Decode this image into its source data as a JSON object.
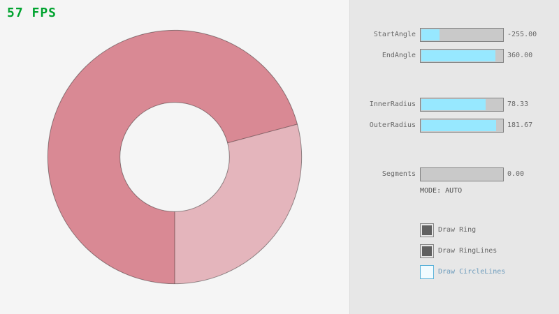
{
  "fps": {
    "text": "57 FPS"
  },
  "ring": {
    "start_angle": -255,
    "end_angle": 360,
    "inner_radius": 78.33,
    "outer_radius": 181.67,
    "colors": {
      "overlap_fill": "#d98994",
      "single_fill": "#e4b5bc",
      "outline": "rgba(0,0,0,0.4)"
    }
  },
  "panel": {
    "sliders": [
      {
        "label": "StartAngle",
        "value": "-255.00",
        "fill": 0.217
      },
      {
        "label": "EndAngle",
        "value": "360.00",
        "fill": 0.9
      },
      {
        "label": "InnerRadius",
        "value": "78.33",
        "fill": 0.783
      },
      {
        "label": "OuterRadius",
        "value": "181.67",
        "fill": 0.908
      },
      {
        "label": "Segments",
        "value": "0.00",
        "fill": 0
      }
    ],
    "mode_text": "MODE: AUTO",
    "checkboxes": [
      {
        "label": "Draw Ring",
        "checked": true,
        "state": "normal"
      },
      {
        "label": "Draw RingLines",
        "checked": true,
        "state": "normal"
      },
      {
        "label": "Draw CircleLines",
        "checked": false,
        "state": "focused"
      }
    ]
  },
  "colors": {
    "canvas-bg": "#f5f5f5",
    "panel-bg": "#e7e7e7",
    "divider": "#dadada",
    "border": "#838383",
    "track": "#c9c9c9",
    "slider-fill": "#97e8ff",
    "text": "#686868",
    "mode-text": "#505050",
    "check": "#606060",
    "focus-border": "#5bb2d9",
    "focus-text": "#6c9bbc",
    "fps": "#00a32f"
  }
}
